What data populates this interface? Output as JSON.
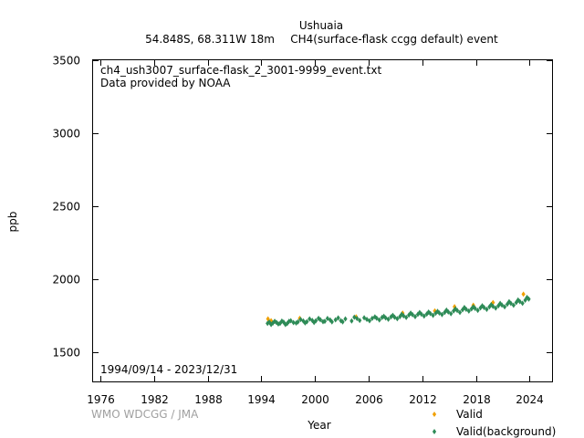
{
  "chart_data": {
    "type": "scatter",
    "title": "Ushuaia",
    "subtitle_location": "54.848S, 68.311W 18m",
    "subtitle_product": "CH4(surface-flask ccgg default) event",
    "file_name": "ch4_ush3007_surface-flask_2_3001-9999_event.txt",
    "provider": "Data provided by NOAA",
    "date_range": "1994/09/14 - 2023/12/31",
    "credit": "WMO WDCGG / JMA",
    "xlabel": "Year",
    "ylabel": "ppb",
    "xlim": [
      1975.2,
      2026.5
    ],
    "ylim": [
      1300,
      3500
    ],
    "xticks": [
      1976,
      1982,
      1988,
      1994,
      2000,
      2006,
      2012,
      2018,
      2024
    ],
    "yticks": [
      1500,
      2000,
      2500,
      3000,
      3500
    ],
    "legend_position": "bottom-right",
    "series": [
      {
        "name": "Valid",
        "color": "#f0a000",
        "x": [
          1994.75,
          1995.1,
          1998.3,
          2004.6,
          2009.8,
          2013.4,
          2015.6,
          2017.7,
          2019.9,
          2023.3
        ],
        "y": [
          1728,
          1716,
          1732,
          1742,
          1768,
          1783,
          1812,
          1822,
          1840,
          1898
        ]
      },
      {
        "name": "Valid(background)",
        "color": "#2e8b57",
        "x": [
          1994.7,
          1994.9,
          1995.1,
          1995.3,
          1995.5,
          1995.7,
          1995.9,
          1996.1,
          1996.3,
          1996.5,
          1996.7,
          1996.9,
          1997.1,
          1997.3,
          1997.6,
          1997.9,
          1998.1,
          1998.4,
          1998.7,
          1998.9,
          1999.1,
          1999.4,
          1999.7,
          1999.9,
          2000.1,
          2000.4,
          2000.6,
          2000.9,
          2001.1,
          2001.4,
          2001.7,
          2001.9,
          2002.3,
          2002.6,
          2002.9,
          2003.1,
          2003.4,
          2004.1,
          2004.4,
          2004.7,
          2005.0,
          2005.5,
          2005.8,
          2006.1,
          2006.4,
          2006.7,
          2006.9,
          2007.2,
          2007.5,
          2007.7,
          2007.9,
          2008.2,
          2008.5,
          2008.7,
          2008.9,
          2009.2,
          2009.5,
          2009.7,
          2009.9,
          2010.2,
          2010.5,
          2010.7,
          2010.9,
          2011.2,
          2011.5,
          2011.7,
          2011.9,
          2012.2,
          2012.5,
          2012.7,
          2012.9,
          2013.2,
          2013.5,
          2013.7,
          2013.9,
          2014.2,
          2014.5,
          2014.7,
          2014.9,
          2015.2,
          2015.5,
          2015.7,
          2015.9,
          2016.2,
          2016.5,
          2016.7,
          2016.9,
          2017.2,
          2017.5,
          2017.7,
          2017.9,
          2018.2,
          2018.5,
          2018.7,
          2018.9,
          2019.2,
          2019.5,
          2019.7,
          2019.9,
          2020.2,
          2020.5,
          2020.7,
          2020.9,
          2021.2,
          2021.5,
          2021.7,
          2021.9,
          2022.2,
          2022.5,
          2022.7,
          2022.9,
          2023.2,
          2023.5,
          2023.7,
          2023.9
        ],
        "y": [
          1698,
          1706,
          1690,
          1700,
          1712,
          1704,
          1694,
          1698,
          1713,
          1706,
          1690,
          1697,
          1712,
          1716,
          1703,
          1700,
          1708,
          1724,
          1714,
          1701,
          1709,
          1728,
          1718,
          1704,
          1716,
          1732,
          1723,
          1709,
          1712,
          1731,
          1721,
          1708,
          1722,
          1735,
          1716,
          1708,
          1728,
          1714,
          1740,
          1731,
          1718,
          1736,
          1725,
          1716,
          1732,
          1742,
          1733,
          1721,
          1738,
          1746,
          1735,
          1726,
          1742,
          1752,
          1740,
          1730,
          1744,
          1760,
          1749,
          1738,
          1755,
          1768,
          1757,
          1744,
          1759,
          1772,
          1760,
          1748,
          1762,
          1775,
          1765,
          1752,
          1768,
          1780,
          1769,
          1758,
          1773,
          1788,
          1776,
          1764,
          1783,
          1797,
          1786,
          1773,
          1791,
          1806,
          1794,
          1782,
          1797,
          1811,
          1800,
          1787,
          1804,
          1818,
          1806,
          1794,
          1811,
          1826,
          1814,
          1802,
          1818,
          1834,
          1823,
          1811,
          1829,
          1846,
          1834,
          1822,
          1841,
          1858,
          1847,
          1835,
          1856,
          1875,
          1864
        ]
      }
    ]
  }
}
